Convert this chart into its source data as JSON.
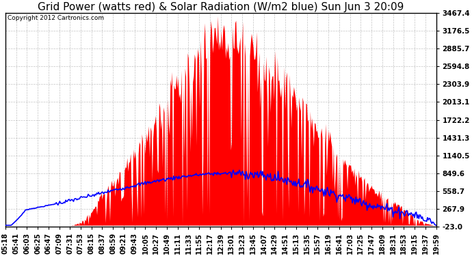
{
  "title": "Grid Power (watts red) & Solar Radiation (W/m2 blue) Sun Jun 3 20:09",
  "copyright": "Copyright 2012 Cartronics.com",
  "yticks": [
    3467.4,
    3176.5,
    2885.7,
    2594.8,
    2303.9,
    2013.1,
    1722.2,
    1431.3,
    1140.5,
    849.6,
    558.7,
    267.9,
    -23.0
  ],
  "ymin": -23.0,
  "ymax": 3467.4,
  "bg_color": "#ffffff",
  "grid_color": "#aaaaaa",
  "red_color": "#ff0000",
  "blue_color": "#0000ff",
  "title_fontsize": 11,
  "tick_fontsize": 7.5,
  "xtick_labels": [
    "05:18",
    "05:41",
    "06:03",
    "06:25",
    "06:47",
    "07:09",
    "07:31",
    "07:53",
    "08:15",
    "08:37",
    "08:59",
    "09:21",
    "09:43",
    "10:05",
    "10:27",
    "10:49",
    "11:11",
    "11:33",
    "11:55",
    "12:17",
    "12:39",
    "13:01",
    "13:23",
    "13:45",
    "14:07",
    "14:29",
    "14:51",
    "15:13",
    "15:35",
    "15:57",
    "16:19",
    "16:41",
    "17:03",
    "17:25",
    "17:47",
    "18:09",
    "18:31",
    "18:53",
    "19:15",
    "19:37",
    "19:59"
  ],
  "n_points": 500
}
